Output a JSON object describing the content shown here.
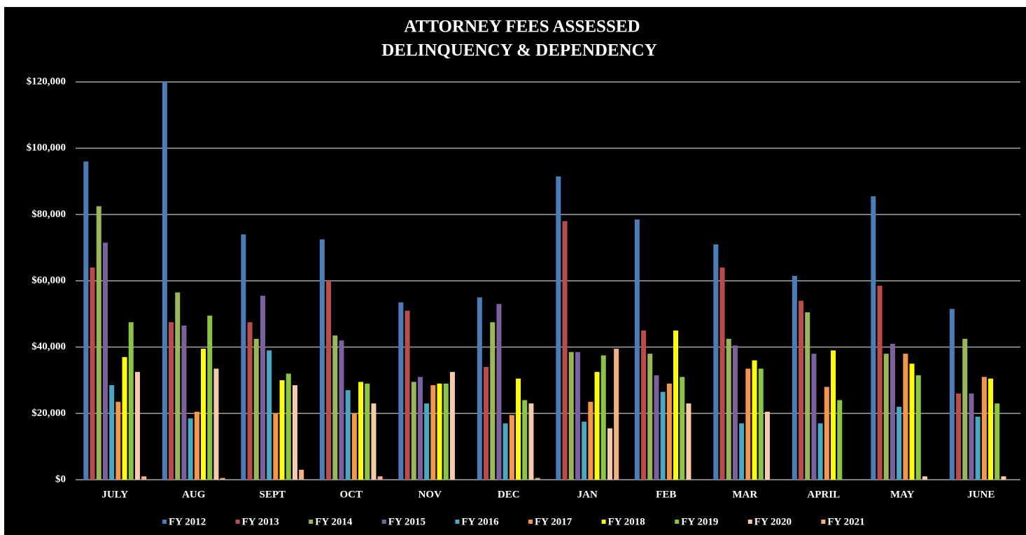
{
  "chart_data": {
    "type": "bar",
    "title": "ATTORNEY FEES ASSESSED",
    "subtitle": "DELINQUENCY & DEPENDENCY",
    "categories": [
      "JULY",
      "AUG",
      "SEPT",
      "OCT",
      "NOV",
      "DEC",
      "JAN",
      "FEB",
      "MAR",
      "APRIL",
      "MAY",
      "JUNE"
    ],
    "series": [
      {
        "name": "FY 2012",
        "color": "#4a7ebb",
        "values": [
          96000,
          120000,
          74000,
          72500,
          53500,
          55000,
          91500,
          78500,
          71000,
          61500,
          85500,
          51500
        ]
      },
      {
        "name": "FY 2013",
        "color": "#be4b48",
        "values": [
          64000,
          47500,
          47500,
          60000,
          51000,
          34000,
          78000,
          45000,
          64000,
          54000,
          58500,
          26000
        ]
      },
      {
        "name": "FY 2014",
        "color": "#98b954",
        "values": [
          82500,
          56500,
          42500,
          43500,
          29500,
          47500,
          38500,
          38000,
          42500,
          50500,
          38000,
          42500
        ]
      },
      {
        "name": "FY 2015",
        "color": "#7d60a0",
        "values": [
          71500,
          46500,
          55500,
          42000,
          31000,
          53000,
          38500,
          31500,
          40500,
          38000,
          41000,
          26000
        ]
      },
      {
        "name": "FY 2016",
        "color": "#46aac5",
        "values": [
          28500,
          18500,
          39000,
          27000,
          23000,
          17000,
          17500,
          26500,
          17000,
          17000,
          22000,
          19000
        ]
      },
      {
        "name": "FY 2017",
        "color": "#f79646",
        "values": [
          23500,
          20500,
          20000,
          20000,
          28500,
          19500,
          23500,
          29000,
          33500,
          28000,
          38000,
          31000
        ]
      },
      {
        "name": "FY 2018",
        "color": "#ffff00",
        "values": [
          37000,
          39500,
          30000,
          29500,
          29000,
          30500,
          32500,
          45000,
          36000,
          39000,
          35000,
          30500
        ]
      },
      {
        "name": "FY 2019",
        "color": "#8cc63f",
        "values": [
          47500,
          49500,
          32000,
          29000,
          29000,
          24000,
          37500,
          31000,
          33500,
          24000,
          31500,
          23000
        ]
      },
      {
        "name": "FY 2020",
        "color": "#f8cba8",
        "values": [
          32500,
          33500,
          28500,
          23000,
          32500,
          23000,
          15500,
          23000,
          20500,
          0,
          1000,
          1000
        ]
      },
      {
        "name": "FY 2021",
        "color": "#f4b183",
        "values": [
          1000,
          500,
          3000,
          1000,
          0,
          500,
          39500,
          0,
          0,
          0,
          0,
          0
        ]
      }
    ],
    "ylim": [
      0,
      120000
    ],
    "yticks": [
      {
        "value": 0,
        "label": "$0"
      },
      {
        "value": 20000,
        "label": "$20,000"
      },
      {
        "value": 40000,
        "label": "$40,000"
      },
      {
        "value": 60000,
        "label": "$60,000"
      },
      {
        "value": 80000,
        "label": "$80,000"
      },
      {
        "value": 100000,
        "label": "$100,000"
      },
      {
        "value": 120000,
        "label": "$120,000"
      }
    ],
    "grid": true,
    "legend": "bottom"
  }
}
